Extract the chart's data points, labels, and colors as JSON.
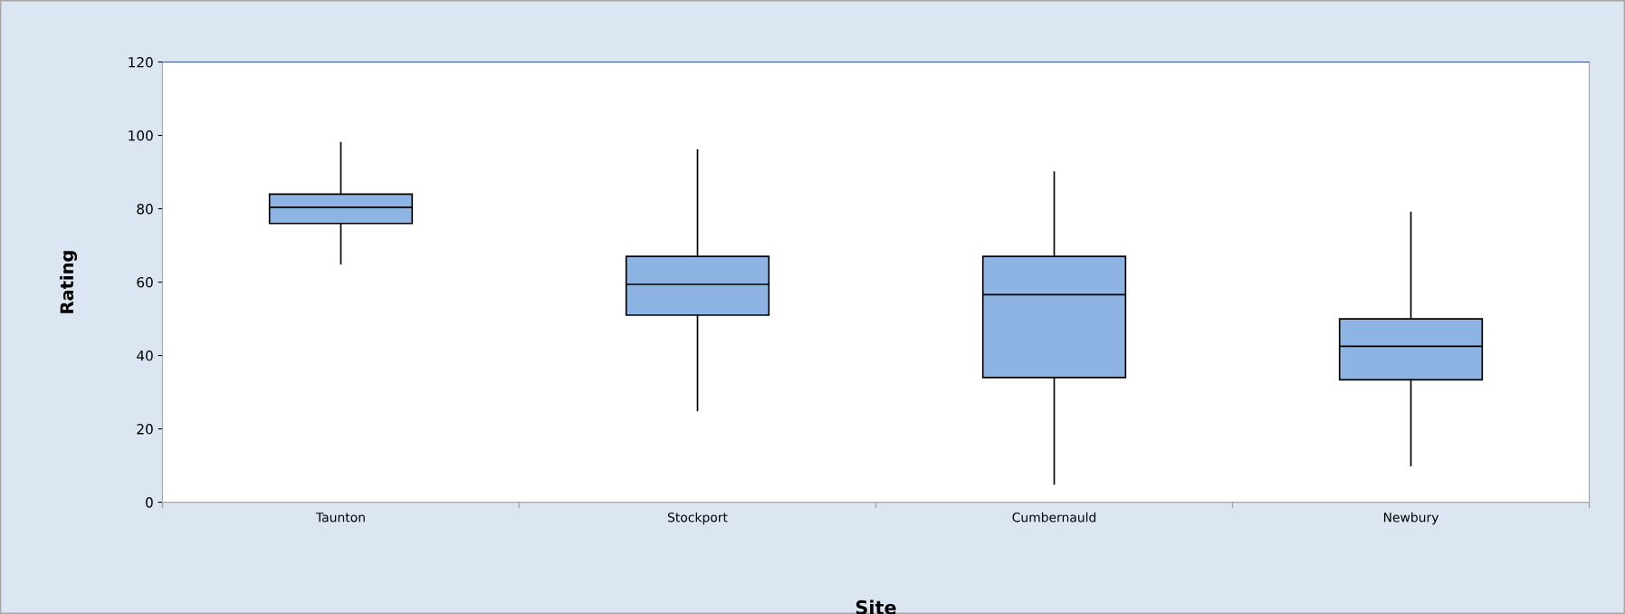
{
  "chart_data": {
    "type": "box",
    "xlabel": "Site",
    "ylabel": "Rating",
    "categories": [
      "Taunton",
      "Stockport",
      "Cumbernauld",
      "Newbury"
    ],
    "boxes": [
      {
        "low": 65,
        "q1": 76,
        "median": 80.4,
        "q3": 84,
        "high": 98
      },
      {
        "low": 25,
        "q1": 51,
        "median": 59.4,
        "q3": 67,
        "high": 96
      },
      {
        "low": 5,
        "q1": 34,
        "median": 56.6,
        "q3": 67,
        "high": 90
      },
      {
        "low": 10,
        "q1": 33.4,
        "median": 42.5,
        "q3": 50,
        "high": 79
      }
    ],
    "color": "#8eb4e3",
    "ylim": [
      0,
      120
    ],
    "yticks": [
      0,
      20,
      40,
      60,
      80,
      100,
      120
    ],
    "grid": false,
    "legend": false
  }
}
